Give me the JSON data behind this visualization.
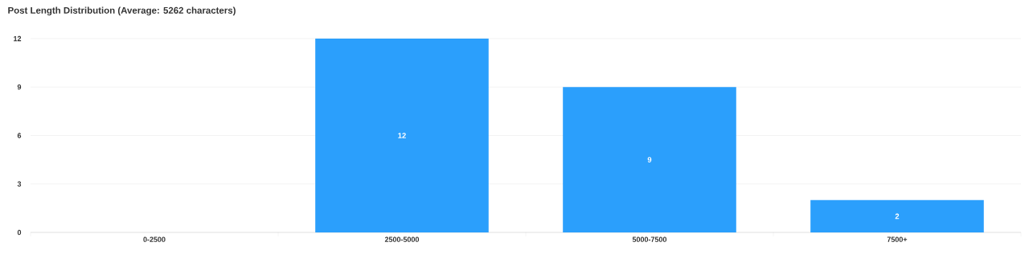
{
  "chart_data": {
    "type": "bar",
    "title": "Post Length Distribution (Average: 5262 characters)",
    "categories": [
      "0-2500",
      "2500-5000",
      "5000-7500",
      "7500+"
    ],
    "values": [
      0,
      12,
      9,
      2
    ],
    "value_labels": [
      null,
      "12",
      "9",
      "2"
    ],
    "color": "#2b9ffc",
    "ylim": [
      0,
      12
    ],
    "yticks": [
      0,
      3,
      6,
      9,
      12
    ],
    "grid": "y"
  }
}
